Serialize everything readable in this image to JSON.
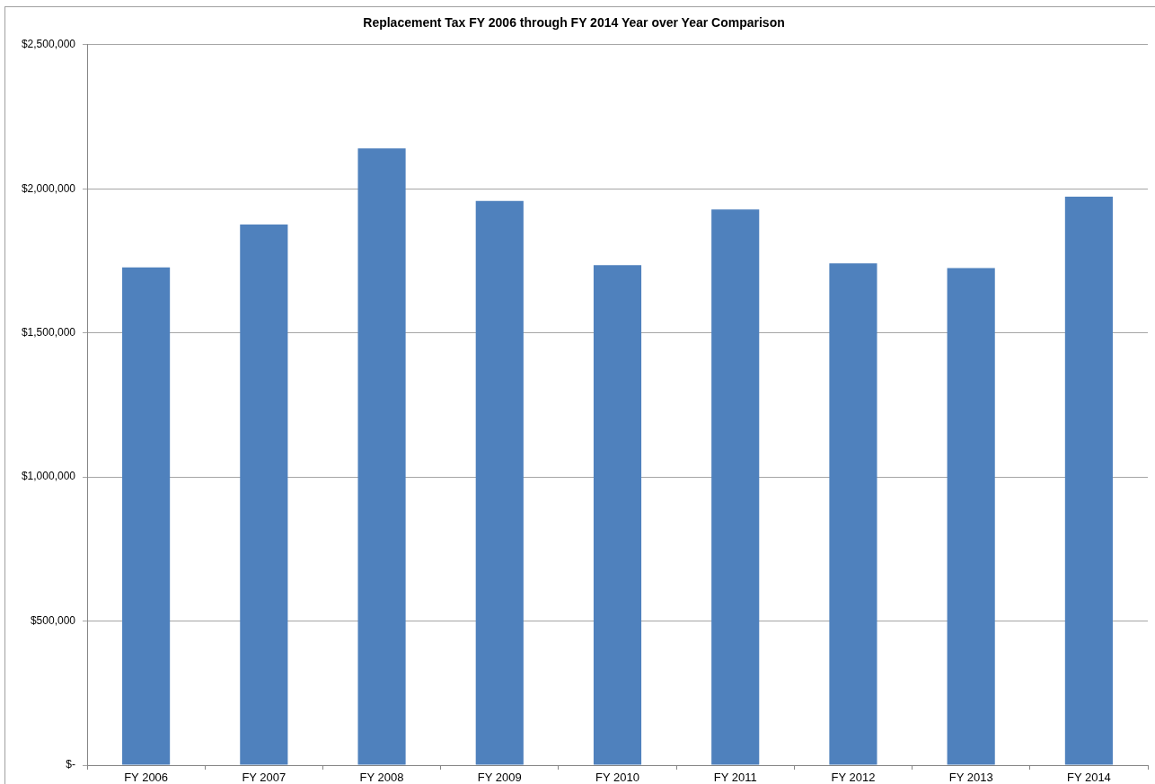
{
  "chart_data": {
    "type": "bar",
    "title": "Replacement Tax FY 2006 through FY 2014 Year over Year Comparison",
    "categories": [
      "FY 2006",
      "FY 2007",
      "FY 2008",
      "FY 2009",
      "FY 2010",
      "FY 2011",
      "FY 2012",
      "FY 2013",
      "FY 2014"
    ],
    "values": [
      1727000,
      1876000,
      2140000,
      1958000,
      1735000,
      1928000,
      1741000,
      1725000,
      1973000
    ],
    "color": "#4f81bd",
    "ylim": [
      0,
      2500000
    ],
    "yticks": [
      {
        "value": 0,
        "label": "$-"
      },
      {
        "value": 500000,
        "label": "$500,000"
      },
      {
        "value": 1000000,
        "label": "$1,000,000"
      },
      {
        "value": 1500000,
        "label": "$1,500,000"
      },
      {
        "value": 2000000,
        "label": "$2,000,000"
      },
      {
        "value": 2500000,
        "label": "$2,500,000"
      }
    ],
    "grid": "y"
  }
}
